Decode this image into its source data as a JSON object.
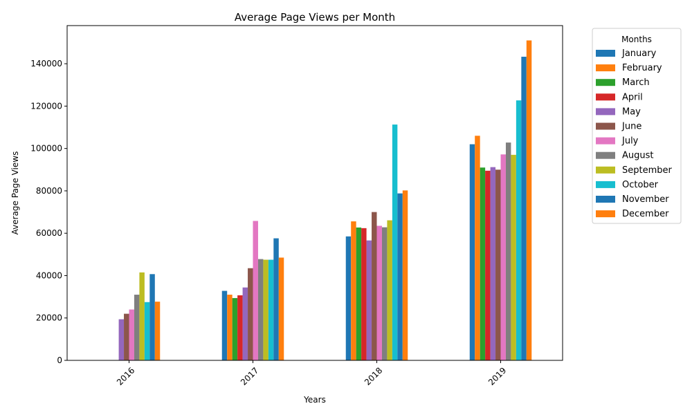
{
  "chart_data": {
    "type": "bar",
    "title": "Average Page Views per Month",
    "xlabel": "Years",
    "ylabel": "Average Page Views",
    "categories": [
      "2016",
      "2017",
      "2018",
      "2019"
    ],
    "ylim": [
      0,
      158000
    ],
    "yticks": [
      "0",
      "20000",
      "40000",
      "60000",
      "80000",
      "100000",
      "120000",
      "140000"
    ],
    "ytick_values": [
      0,
      20000,
      40000,
      60000,
      80000,
      100000,
      120000,
      140000
    ],
    "legend": {
      "title": "Months",
      "placement": "outside-right"
    },
    "grid": false,
    "series": [
      {
        "name": "January",
        "color": "#1f77b4",
        "values": [
          null,
          32800,
          58500,
          102000
        ]
      },
      {
        "name": "February",
        "color": "#ff7f0e",
        "values": [
          null,
          31000,
          65600,
          106000
        ]
      },
      {
        "name": "March",
        "color": "#2ca02c",
        "values": [
          null,
          29400,
          62700,
          91000
        ]
      },
      {
        "name": "April",
        "color": "#d62728",
        "values": [
          null,
          30700,
          62400,
          89500
        ]
      },
      {
        "name": "May",
        "color": "#9467bd",
        "values": [
          19400,
          34400,
          56600,
          91200
        ]
      },
      {
        "name": "June",
        "color": "#8c564b",
        "values": [
          22000,
          43500,
          70000,
          90000
        ]
      },
      {
        "name": "July",
        "color": "#e377c2",
        "values": [
          24000,
          65800,
          63500,
          97200
        ]
      },
      {
        "name": "August",
        "color": "#7f7f7f",
        "values": [
          31000,
          47800,
          62800,
          102800
        ]
      },
      {
        "name": "September",
        "color": "#bcbd22",
        "values": [
          41500,
          47500,
          66100,
          97000
        ]
      },
      {
        "name": "October",
        "color": "#17becf",
        "values": [
          27500,
          47500,
          111300,
          122700
        ]
      },
      {
        "name": "November",
        "color": "#1f77b4",
        "values": [
          40700,
          57600,
          78800,
          143300
        ]
      },
      {
        "name": "December",
        "color": "#ff7f0e",
        "values": [
          27700,
          48500,
          80200,
          151000
        ]
      }
    ]
  }
}
